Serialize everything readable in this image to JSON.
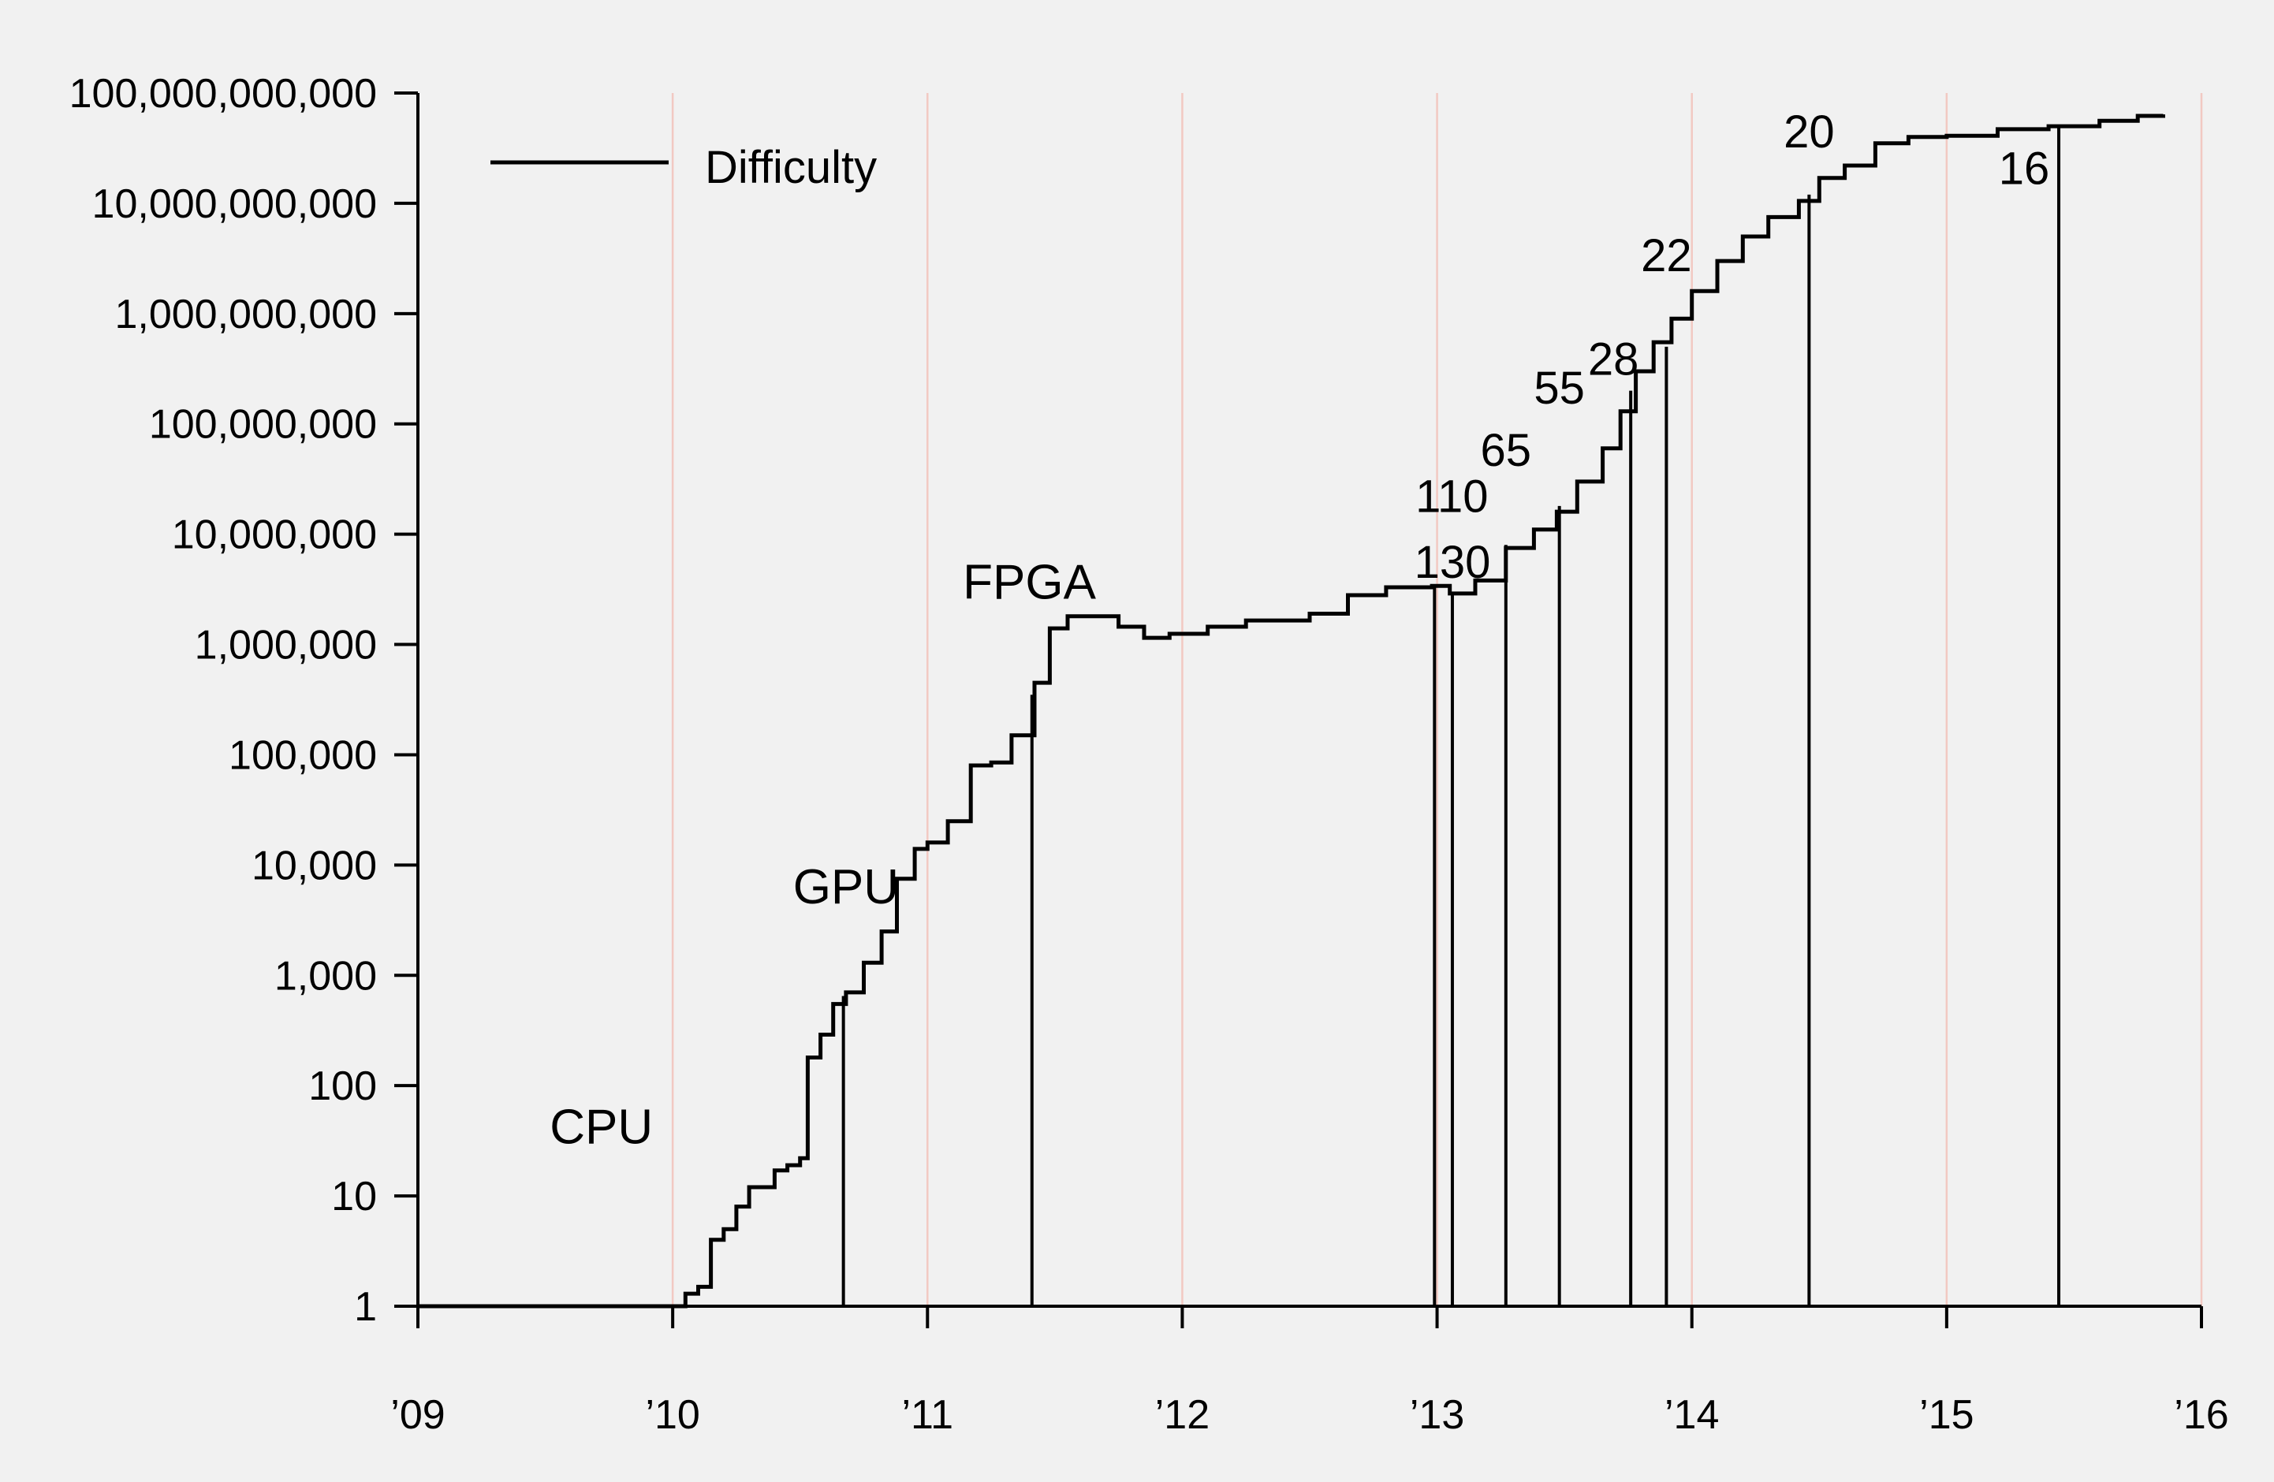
{
  "chart_data": {
    "type": "line",
    "title": "",
    "xlabel": "",
    "ylabel": "",
    "y_scale": "log",
    "xlim": [
      2009,
      2016
    ],
    "ylim": [
      1,
      100000000000
    ],
    "grid": {
      "vertical": true,
      "horizontal": false,
      "color": "#f2c9c2"
    },
    "legend": {
      "placement": "top-left",
      "entries": [
        {
          "label": "Difficulty",
          "color": "#000000"
        }
      ]
    },
    "x_ticks": [
      {
        "value": 2009,
        "label": "’09"
      },
      {
        "value": 2010,
        "label": "’10"
      },
      {
        "value": 2011,
        "label": "’11"
      },
      {
        "value": 2012,
        "label": "’12"
      },
      {
        "value": 2013,
        "label": "’13"
      },
      {
        "value": 2014,
        "label": "’14"
      },
      {
        "value": 2015,
        "label": "’15"
      },
      {
        "value": 2016,
        "label": "’16"
      }
    ],
    "y_ticks": [
      {
        "value": 1,
        "label": "1"
      },
      {
        "value": 10,
        "label": "10"
      },
      {
        "value": 100,
        "label": "100"
      },
      {
        "value": 1000,
        "label": "1,000"
      },
      {
        "value": 10000,
        "label": "10,000"
      },
      {
        "value": 100000,
        "label": "100,000"
      },
      {
        "value": 1000000,
        "label": "1,000,000"
      },
      {
        "value": 10000000,
        "label": "10,000,000"
      },
      {
        "value": 100000000,
        "label": "100,000,000"
      },
      {
        "value": 1000000000,
        "label": "1,000,000,000"
      },
      {
        "value": 10000000000,
        "label": "10,000,000,000"
      },
      {
        "value": 100000000000,
        "label": "100,000,000,000"
      }
    ],
    "series": [
      {
        "name": "Difficulty",
        "color": "#000000",
        "points": [
          [
            2009.0,
            1
          ],
          [
            2009.99,
            1
          ],
          [
            2010.05,
            1.3
          ],
          [
            2010.1,
            1.5
          ],
          [
            2010.15,
            4
          ],
          [
            2010.2,
            5
          ],
          [
            2010.25,
            8
          ],
          [
            2010.3,
            12
          ],
          [
            2010.35,
            12
          ],
          [
            2010.4,
            17
          ],
          [
            2010.45,
            19
          ],
          [
            2010.5,
            22
          ],
          [
            2010.53,
            180
          ],
          [
            2010.58,
            290
          ],
          [
            2010.63,
            550
          ],
          [
            2010.68,
            700
          ],
          [
            2010.75,
            1300
          ],
          [
            2010.82,
            2500
          ],
          [
            2010.88,
            7500
          ],
          [
            2010.95,
            14000
          ],
          [
            2011.0,
            16000
          ],
          [
            2011.08,
            25000
          ],
          [
            2011.17,
            80000
          ],
          [
            2011.25,
            85000
          ],
          [
            2011.33,
            150000
          ],
          [
            2011.42,
            450000
          ],
          [
            2011.48,
            1400000
          ],
          [
            2011.55,
            1800000
          ],
          [
            2011.67,
            1800000
          ],
          [
            2011.75,
            1450000
          ],
          [
            2011.85,
            1150000
          ],
          [
            2011.95,
            1250000
          ],
          [
            2012.1,
            1450000
          ],
          [
            2012.25,
            1650000
          ],
          [
            2012.35,
            1650000
          ],
          [
            2012.5,
            1900000
          ],
          [
            2012.65,
            2800000
          ],
          [
            2012.8,
            3300000
          ],
          [
            2012.98,
            3400000
          ],
          [
            2013.05,
            2900000
          ],
          [
            2013.15,
            3800000
          ],
          [
            2013.27,
            7500000
          ],
          [
            2013.38,
            11000000
          ],
          [
            2013.47,
            16000000
          ],
          [
            2013.55,
            30000000
          ],
          [
            2013.65,
            60000000
          ],
          [
            2013.72,
            130000000
          ],
          [
            2013.78,
            300000000
          ],
          [
            2013.85,
            550000000
          ],
          [
            2013.92,
            900000000
          ],
          [
            2014.0,
            1600000000
          ],
          [
            2014.1,
            3000000000
          ],
          [
            2014.2,
            5000000000
          ],
          [
            2014.3,
            7500000000
          ],
          [
            2014.42,
            10500000000
          ],
          [
            2014.5,
            17000000000
          ],
          [
            2014.6,
            22000000000
          ],
          [
            2014.72,
            35000000000
          ],
          [
            2014.85,
            40000000000
          ],
          [
            2015.0,
            41000000000
          ],
          [
            2015.2,
            47000000000
          ],
          [
            2015.4,
            50000000000
          ],
          [
            2015.6,
            56000000000
          ],
          [
            2015.75,
            62000000000
          ],
          [
            2015.85,
            64000000000
          ]
        ]
      }
    ],
    "annotations": [
      {
        "text": "CPU",
        "x": 2009.72,
        "y": 30
      },
      {
        "text": "GPU",
        "x": 2010.68,
        "y": 4500
      },
      {
        "text": "FPGA",
        "x": 2011.4,
        "y": 2600000
      }
    ],
    "asic_markers": [
      {
        "label": "130",
        "x": 2013.06,
        "top": 3000000
      },
      {
        "label": "110",
        "x": 2012.99,
        "top": 3500000
      },
      {
        "label": "65",
        "x": 2013.27,
        "top": 8000000
      },
      {
        "label": "55",
        "x": 2013.48,
        "top": 18000000
      },
      {
        "label": "28",
        "x": 2013.76,
        "top": 200000000
      },
      {
        "label": "22",
        "x": 2013.9,
        "top": 500000000
      },
      {
        "label": "20",
        "x": 2014.46,
        "top": 12000000000
      },
      {
        "label": "16",
        "x": 2015.44,
        "top": 49000000000
      }
    ],
    "other_markers": [
      {
        "x": 2010.67,
        "top": 650
      },
      {
        "x": 2011.41,
        "top": 350000
      }
    ]
  }
}
